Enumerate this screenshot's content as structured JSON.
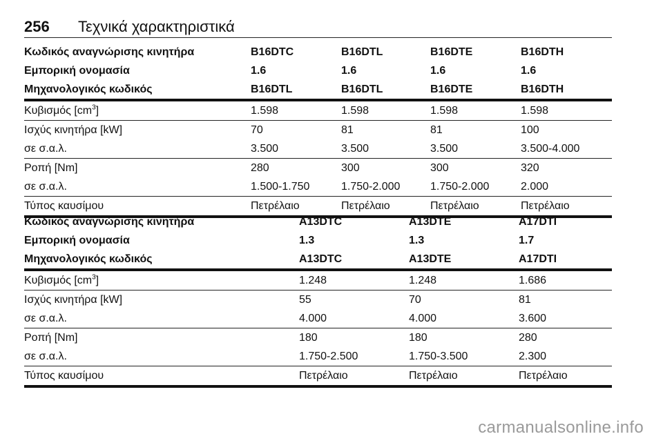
{
  "header": {
    "page_number": "256",
    "title": "Τεχνικά χαρακτηριστικά"
  },
  "table1": {
    "head_rows": [
      {
        "label": "Κωδικός αναγνώρισης κινητήρα",
        "values": [
          "B16DTC",
          "B16DTL",
          "B16DTE",
          "B16DTH"
        ]
      },
      {
        "label": "Εμπορική ονομασία",
        "values": [
          "1.6",
          "1.6",
          "1.6",
          "1.6"
        ]
      },
      {
        "label": "Μηχανολογικός κωδικός",
        "values": [
          "B16DTL",
          "B16DTL",
          "B16DTE",
          "B16DTH"
        ]
      }
    ],
    "displacement": {
      "label": "Κυβισμός [cm",
      "sup": "3",
      "label_end": "]",
      "values": [
        "1.598",
        "1.598",
        "1.598",
        "1.598"
      ]
    },
    "power": {
      "label": "Ισχύς κινητήρα [kW]",
      "values": [
        "70",
        "81",
        "81",
        "100"
      ]
    },
    "power_rpm": {
      "label": "σε σ.α.λ.",
      "values": [
        "3.500",
        "3.500",
        "3.500",
        "3.500-4.000"
      ]
    },
    "torque": {
      "label": "Ροπή [Nm]",
      "values": [
        "280",
        "300",
        "300",
        "320"
      ]
    },
    "torque_rpm": {
      "label": "σε σ.α.λ.",
      "values": [
        "1.500-1.750",
        "1.750-2.000",
        "1.750-2.000",
        "2.000"
      ]
    },
    "fuel": {
      "label": "Τύπος καυσίμου",
      "values": [
        "Πετρέλαιο",
        "Πετρέλαιο",
        "Πετρέλαιο",
        "Πετρέλαιο"
      ]
    }
  },
  "table2": {
    "head_rows": [
      {
        "label": "Κωδικός αναγνώρισης κινητήρα",
        "values": [
          "A13DTC",
          "A13DTE",
          "A17DTI"
        ]
      },
      {
        "label": "Εμπορική ονομασία",
        "values": [
          "1.3",
          "1.3",
          "1.7"
        ]
      },
      {
        "label": "Μηχανολογικός κωδικός",
        "values": [
          "A13DTC",
          "A13DTE",
          "A17DTI"
        ]
      }
    ],
    "displacement": {
      "label": "Κυβισμός [cm",
      "sup": "3",
      "label_end": "]",
      "values": [
        "1.248",
        "1.248",
        "1.686"
      ]
    },
    "power": {
      "label": "Ισχύς κινητήρα [kW]",
      "values": [
        "55",
        "70",
        "81"
      ]
    },
    "power_rpm": {
      "label": "σε σ.α.λ.",
      "values": [
        "4.000",
        "4.000",
        "3.600"
      ]
    },
    "torque": {
      "label": "Ροπή [Nm]",
      "values": [
        "180",
        "180",
        "280"
      ]
    },
    "torque_rpm": {
      "label": "σε σ.α.λ.",
      "values": [
        "1.750-2.500",
        "1.750-3.500",
        "2.300"
      ]
    },
    "fuel": {
      "label": "Τύπος καυσίμου",
      "values": [
        "Πετρέλαιο",
        "Πετρέλαιο",
        "Πετρέλαιο"
      ]
    }
  },
  "watermark": "carmanualsonline.info"
}
